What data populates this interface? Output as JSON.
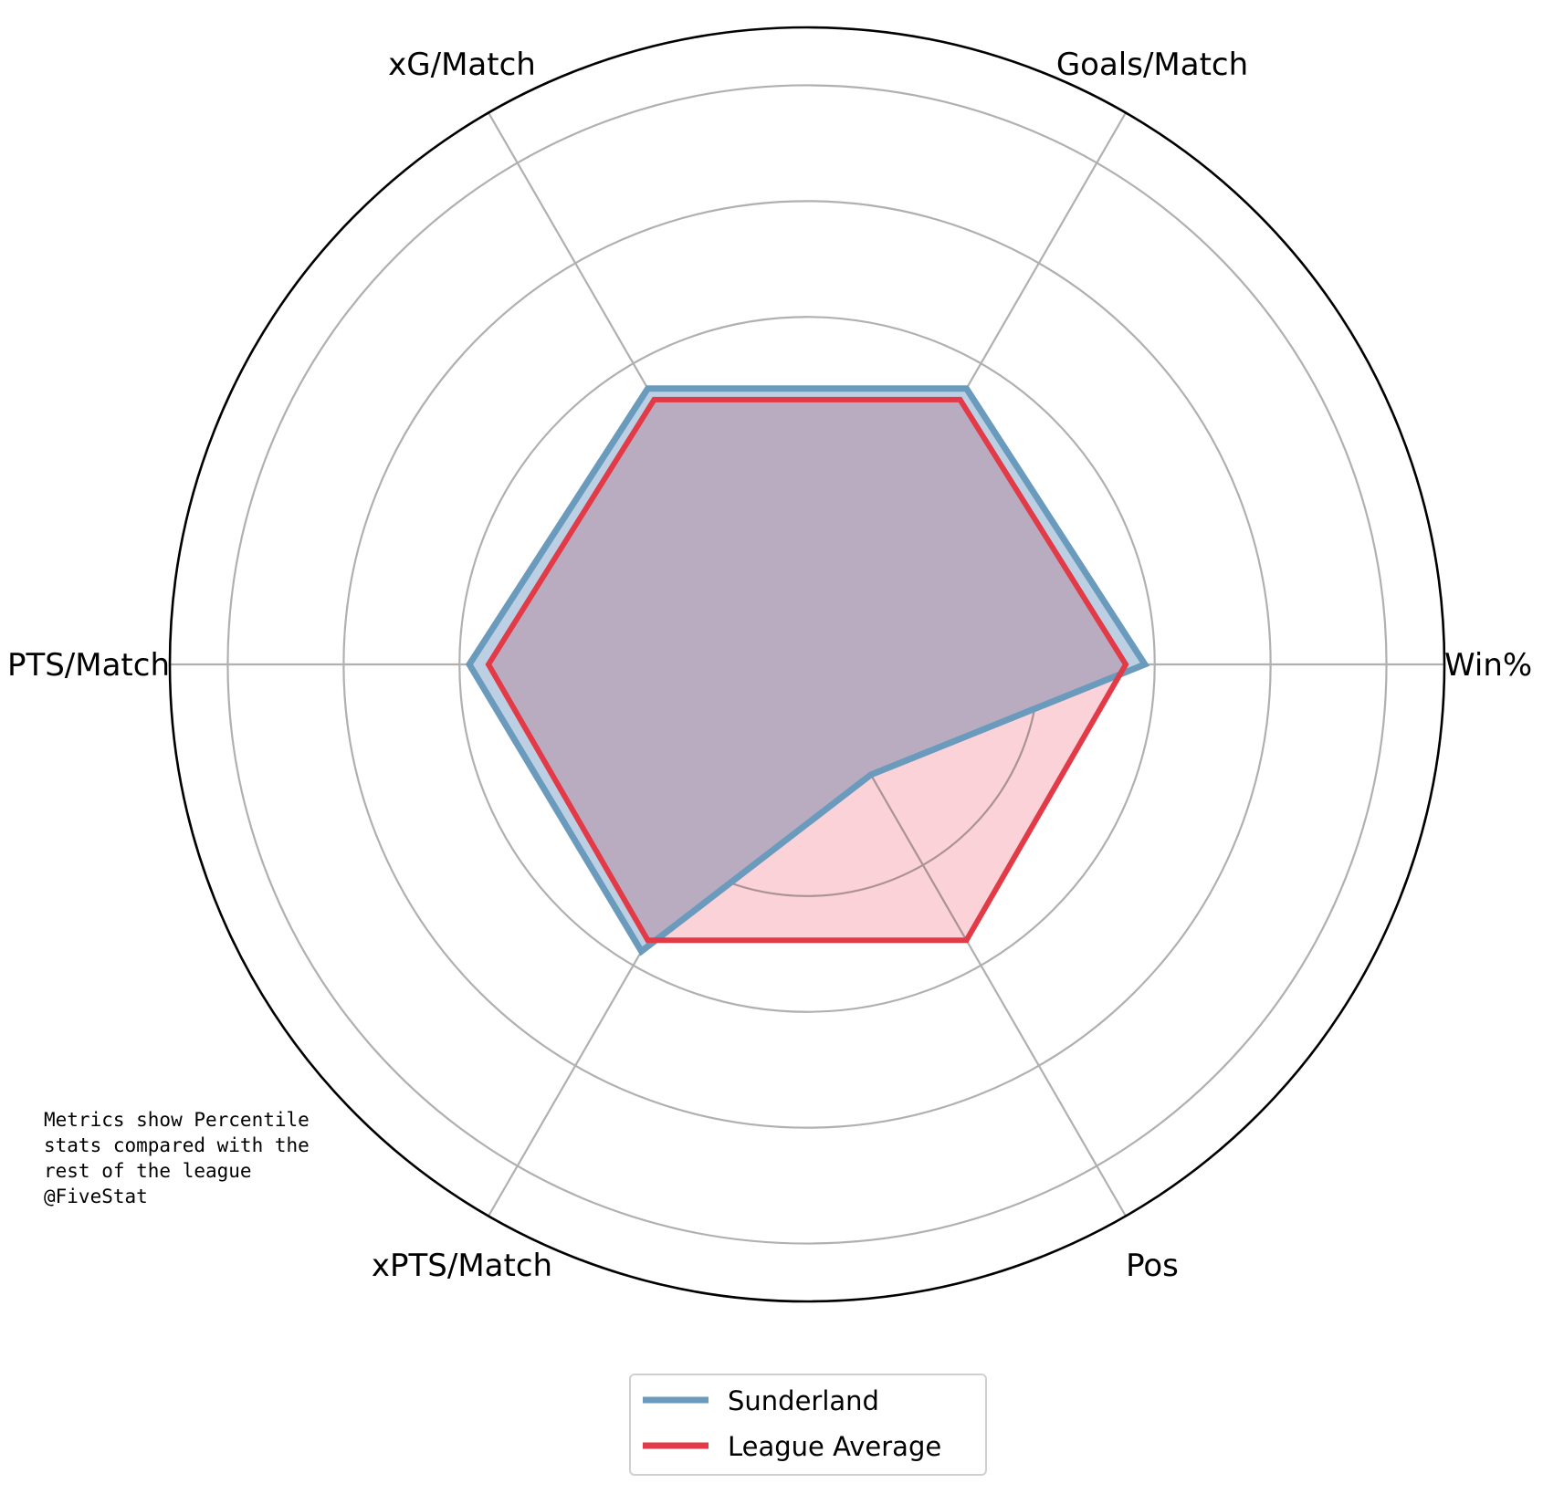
{
  "chart_data": {
    "type": "radar",
    "categories": [
      "Win%",
      "Goals/Match",
      "xG/Match",
      "PTS/Match",
      "xPTS/Match",
      "Pos"
    ],
    "rlim": [
      0,
      100
    ],
    "grid": true,
    "series": [
      {
        "name": "Sunderland",
        "color": "#6a9bbd",
        "fill": "#bdd0e3",
        "values": [
          53,
          50,
          50,
          53,
          52,
          20
        ]
      },
      {
        "name": "League Average",
        "color": "#e23a47",
        "fill": "#f9cdd4",
        "values": [
          50,
          48,
          48,
          50,
          50,
          50
        ]
      }
    ],
    "legend_position": "bottom-center"
  },
  "notes": {
    "lines": [
      "Metrics show Percentile",
      "stats compared with the",
      "rest of the league",
      "",
      "@FiveStat"
    ]
  }
}
